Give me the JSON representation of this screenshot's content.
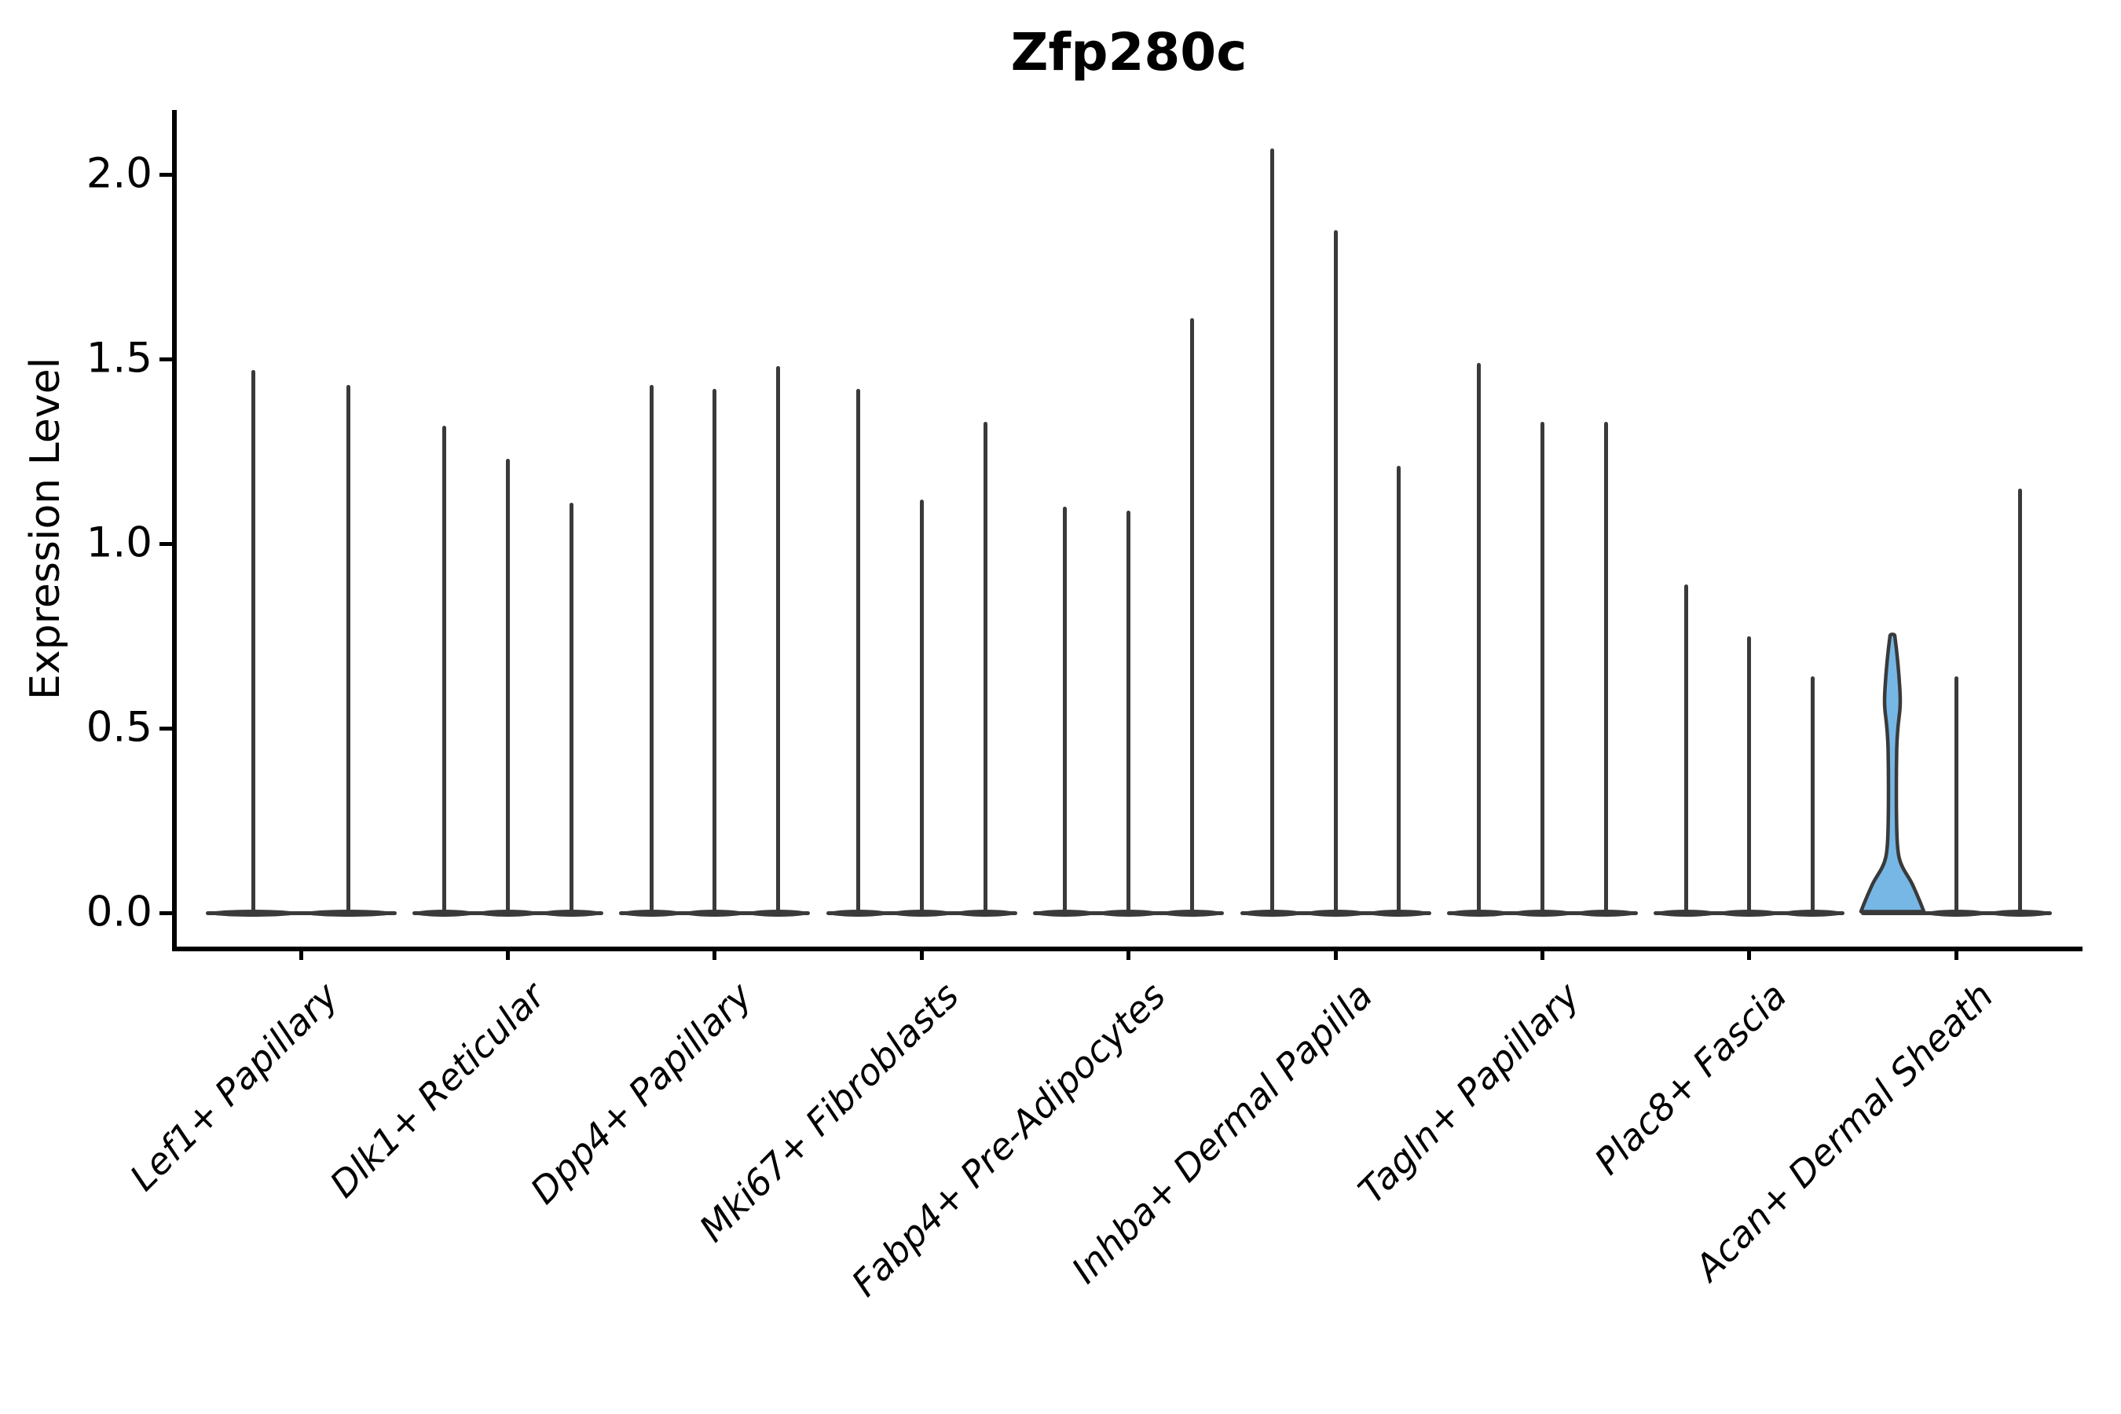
{
  "title": "Zfp280c",
  "axes": {
    "y_label": "Expression Level",
    "y_tick_labels": [
      "0.0",
      "0.5",
      "1.0",
      "1.5",
      "2.0"
    ],
    "y_tick_values": [
      0.0,
      0.5,
      1.0,
      1.5,
      2.0
    ]
  },
  "colors": {
    "violin_outline": "#3a3a3a",
    "highlight_fill": "#76b7e6",
    "axis": "#000000",
    "text": "#000000"
  },
  "chart_data": {
    "type": "violin",
    "title": "Zfp280c",
    "xlabel": "",
    "ylabel": "Expression Level",
    "ylim": [
      0,
      2.1
    ],
    "y_ticks": [
      0.0,
      0.5,
      1.0,
      1.5,
      2.0
    ],
    "grid": false,
    "legend": "none",
    "categories": [
      "Lef1+ Papillary",
      "Dlk1+ Reticular",
      "Dpp4+ Papillary",
      "Mki67+ Fibroblasts",
      "Fabp4+ Pre-Adipocytes",
      "Inhba+ Dermal Papilla",
      "Tagln+ Papillary",
      "Plac8+ Fascia",
      "Acan+ Dermal Sheath"
    ],
    "groups": [
      {
        "category": "Lef1+ Papillary",
        "violins": [
          {
            "max": 1.47
          },
          {
            "max": 1.43
          }
        ]
      },
      {
        "category": "Dlk1+ Reticular",
        "violins": [
          {
            "max": 1.32
          },
          {
            "max": 1.23
          },
          {
            "max": 1.11
          }
        ]
      },
      {
        "category": "Dpp4+ Papillary",
        "violins": [
          {
            "max": 1.43
          },
          {
            "max": 1.42
          },
          {
            "max": 1.48
          }
        ]
      },
      {
        "category": "Mki67+ Fibroblasts",
        "violins": [
          {
            "max": 1.42
          },
          {
            "max": 1.12
          },
          {
            "max": 1.33
          }
        ]
      },
      {
        "category": "Fabp4+ Pre-Adipocytes",
        "violins": [
          {
            "max": 1.1
          },
          {
            "max": 1.09
          },
          {
            "max": 1.61
          }
        ]
      },
      {
        "category": "Inhba+ Dermal Papilla",
        "violins": [
          {
            "max": 2.07
          },
          {
            "max": 1.85
          },
          {
            "max": 1.21
          }
        ]
      },
      {
        "category": "Tagln+ Papillary",
        "violins": [
          {
            "max": 1.49
          },
          {
            "max": 1.33
          },
          {
            "max": 1.33
          }
        ]
      },
      {
        "category": "Plac8+ Fascia",
        "violins": [
          {
            "max": 0.89
          },
          {
            "max": 0.75
          },
          {
            "max": 0.64
          }
        ]
      },
      {
        "category": "Acan+ Dermal Sheath",
        "violins": [
          {
            "max": 0.75,
            "filled": true
          },
          {
            "max": 0.64
          },
          {
            "max": 1.15
          }
        ]
      }
    ],
    "note": "Expression density is concentrated at 0 for every violin (flat wide base at y=0 with a thin spike up to the max value); only the first violin of Acan+ Dermal Sheath has a visible blue-filled density body."
  }
}
